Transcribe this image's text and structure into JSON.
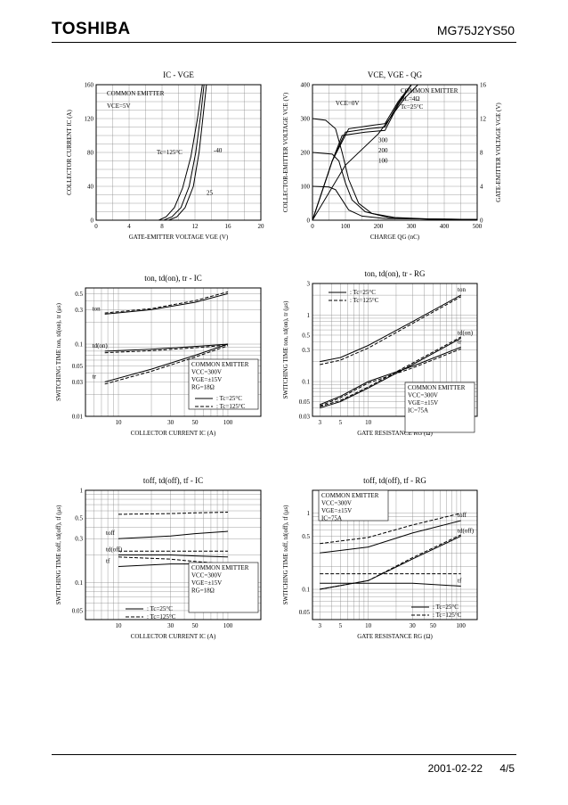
{
  "header": {
    "brand": "TOSHIBA",
    "part_number": "MG75J2YS50"
  },
  "footer": {
    "date": "2001-02-22",
    "page": "4/5"
  },
  "chart_data": [
    {
      "id": "ic_vge",
      "type": "line",
      "title": "IC - VGE",
      "xlabel": "GATE-EMITTER VOLTAGE  VGE  (V)",
      "ylabel": "COLLECTOR CURRENT  IC  (A)",
      "xlim": [
        0,
        20
      ],
      "ylim": [
        0,
        160
      ],
      "xticks": [
        0,
        4,
        8,
        12,
        16,
        20
      ],
      "yticks": [
        0,
        40,
        80,
        120,
        160
      ],
      "annotations": [
        "COMMON EMITTER",
        "VCE=5V",
        "Tc=125°C",
        "-40",
        "25"
      ],
      "series": [
        {
          "label": "125",
          "points": [
            [
              7.6,
              0
            ],
            [
              8.5,
              4
            ],
            [
              9.5,
              15
            ],
            [
              10.5,
              38
            ],
            [
              11.5,
              75
            ],
            [
              12.3,
              120
            ],
            [
              12.9,
              160
            ]
          ]
        },
        {
          "label": "25",
          "points": [
            [
              8.2,
              0
            ],
            [
              9.2,
              4
            ],
            [
              10.3,
              15
            ],
            [
              11.3,
              40
            ],
            [
              12.1,
              80
            ],
            [
              12.7,
              125
            ],
            [
              13.1,
              160
            ]
          ]
        },
        {
          "label": "-40",
          "points": [
            [
              8.8,
              0
            ],
            [
              9.8,
              4
            ],
            [
              10.8,
              15
            ],
            [
              11.8,
              40
            ],
            [
              12.5,
              80
            ],
            [
              13.0,
              125
            ],
            [
              13.4,
              160
            ]
          ]
        }
      ]
    },
    {
      "id": "vce_vge_qg",
      "type": "line",
      "title": "VCE, VGE - QG",
      "xlabel": "CHARGE  QG  (nC)",
      "ylabel": "COLLECTOR-EMITTER VOLTAGE  VCE  (V)",
      "ylabel2": "GATE-EMITTER VOLTAGE  VGE  (V)",
      "xlim": [
        0,
        500
      ],
      "ylim": [
        0,
        400
      ],
      "ylim2": [
        0,
        16
      ],
      "xticks": [
        0,
        100,
        200,
        300,
        400,
        500
      ],
      "yticks": [
        0,
        100,
        200,
        300,
        400
      ],
      "yticks2": [
        0,
        4,
        8,
        12,
        16
      ],
      "annotations": [
        "COMMON EMITTER",
        "RL=4Ω",
        "Tc=25°C",
        "VCE=0V",
        "300",
        "200",
        "100"
      ],
      "series": [
        {
          "label": "VCE 300",
          "points": [
            [
              0,
              300
            ],
            [
              40,
              295
            ],
            [
              70,
              270
            ],
            [
              90,
              200
            ],
            [
              110,
              120
            ],
            [
              140,
              50
            ],
            [
              180,
              20
            ],
            [
              250,
              8
            ],
            [
              350,
              4
            ],
            [
              500,
              2
            ]
          ]
        },
        {
          "label": "VCE 200",
          "points": [
            [
              0,
              200
            ],
            [
              60,
              195
            ],
            [
              80,
              175
            ],
            [
              100,
              110
            ],
            [
              120,
              60
            ],
            [
              160,
              25
            ],
            [
              230,
              8
            ],
            [
              350,
              3
            ],
            [
              500,
              2
            ]
          ]
        },
        {
          "label": "VCE 100",
          "points": [
            [
              0,
              100
            ],
            [
              50,
              98
            ],
            [
              70,
              90
            ],
            [
              90,
              60
            ],
            [
              110,
              30
            ],
            [
              150,
              12
            ],
            [
              220,
              5
            ],
            [
              500,
              2
            ]
          ]
        },
        {
          "label": "VGE 300",
          "points": [
            [
              0,
              0
            ],
            [
              60,
              7.0
            ],
            [
              110,
              10.8
            ],
            [
              180,
              11.2
            ],
            [
              220,
              11.4
            ],
            [
              260,
              14
            ],
            [
              300,
              16.4
            ]
          ]
        },
        {
          "label": "VGE 200",
          "points": [
            [
              0,
              0
            ],
            [
              60,
              7.0
            ],
            [
              100,
              10.4
            ],
            [
              170,
              10.8
            ],
            [
              220,
              11.0
            ],
            [
              260,
              13.8
            ],
            [
              300,
              16.4
            ]
          ]
        },
        {
          "label": "VGE 100",
          "points": [
            [
              0,
              0
            ],
            [
              60,
              7.0
            ],
            [
              90,
              10.0
            ],
            [
              160,
              10.4
            ],
            [
              220,
              10.6
            ],
            [
              260,
              13.6
            ],
            [
              300,
              16.4
            ]
          ]
        },
        {
          "label": "VGE 0V",
          "points": [
            [
              0,
              0
            ],
            [
              100,
              6.5
            ],
            [
              200,
              10.2
            ],
            [
              280,
              14.4
            ],
            [
              320,
              16.4
            ]
          ]
        }
      ]
    },
    {
      "id": "ton_ic",
      "type": "line",
      "title": "ton, td(on), tr - IC",
      "xlabel": "COLLECTOR CURRENT  IC  (A)",
      "ylabel": "SWITCHING TIME  ton, td(on), tr  (μs)",
      "xscale": "log",
      "yscale": "log",
      "xlim": [
        5,
        200
      ],
      "ylim": [
        0.01,
        0.6
      ],
      "xticks": [
        10,
        30,
        50,
        100
      ],
      "yticks": [
        0.01,
        0.03,
        0.05,
        0.1,
        0.3,
        0.5
      ],
      "annotations": [
        "COMMON EMITTER",
        "VCC=300V",
        "VGE=±15V",
        "RG=18Ω",
        "ton",
        "td(on)",
        "tr"
      ],
      "legend": [
        ": Tc=25°C",
        ": Tc=125°C"
      ],
      "series": [
        {
          "label": "ton 25",
          "style": "solid",
          "points": [
            [
              7.5,
              0.26
            ],
            [
              20,
              0.3
            ],
            [
              50,
              0.38
            ],
            [
              100,
              0.5
            ]
          ]
        },
        {
          "label": "ton 125",
          "style": "dashed",
          "points": [
            [
              7.5,
              0.27
            ],
            [
              20,
              0.31
            ],
            [
              50,
              0.4
            ],
            [
              100,
              0.53
            ]
          ]
        },
        {
          "label": "td(on) 25",
          "style": "solid",
          "points": [
            [
              7.5,
              0.08
            ],
            [
              20,
              0.085
            ],
            [
              50,
              0.093
            ],
            [
              100,
              0.1
            ]
          ]
        },
        {
          "label": "td(on) 125",
          "style": "dashed",
          "points": [
            [
              7.5,
              0.076
            ],
            [
              20,
              0.081
            ],
            [
              50,
              0.089
            ],
            [
              100,
              0.097
            ]
          ]
        },
        {
          "label": "tr 25",
          "style": "solid",
          "points": [
            [
              7.5,
              0.03
            ],
            [
              20,
              0.045
            ],
            [
              50,
              0.07
            ],
            [
              100,
              0.1
            ]
          ]
        },
        {
          "label": "tr 125",
          "style": "dashed",
          "points": [
            [
              7.5,
              0.028
            ],
            [
              20,
              0.042
            ],
            [
              50,
              0.066
            ],
            [
              100,
              0.095
            ]
          ]
        }
      ]
    },
    {
      "id": "ton_rg",
      "type": "line",
      "title": "ton, td(on), tr - RG",
      "xlabel": "GATE RESISTANCE  RG  (Ω)",
      "ylabel": "SWITCHING TIME  ton, td(on), tr  (μs)",
      "xscale": "log",
      "yscale": "log",
      "xlim": [
        2.5,
        150
      ],
      "ylim": [
        0.03,
        3
      ],
      "xticks": [
        3,
        5,
        10,
        30,
        50,
        100
      ],
      "yticks": [
        0.03,
        0.05,
        0.1,
        0.3,
        0.5,
        1,
        3
      ],
      "annotations": [
        "COMMON EMITTER",
        "VCC=300V",
        "VGE=±15V",
        "IC=75A",
        "ton",
        "td(on)",
        "tr"
      ],
      "legend": [
        ": Tc=25°C",
        ": Tc=125°C"
      ],
      "series": [
        {
          "label": "ton 25",
          "style": "solid",
          "points": [
            [
              3,
              0.2
            ],
            [
              5,
              0.23
            ],
            [
              10,
              0.35
            ],
            [
              30,
              0.8
            ],
            [
              100,
              2.0
            ]
          ]
        },
        {
          "label": "ton 125",
          "style": "dashed",
          "points": [
            [
              3,
              0.18
            ],
            [
              5,
              0.21
            ],
            [
              10,
              0.32
            ],
            [
              30,
              0.75
            ],
            [
              100,
              1.9
            ]
          ]
        },
        {
          "label": "td(on) 25",
          "style": "solid",
          "points": [
            [
              3,
              0.04
            ],
            [
              5,
              0.05
            ],
            [
              10,
              0.08
            ],
            [
              30,
              0.18
            ],
            [
              100,
              0.45
            ]
          ]
        },
        {
          "label": "td(on) 125",
          "style": "dashed",
          "points": [
            [
              3,
              0.042
            ],
            [
              5,
              0.052
            ],
            [
              10,
              0.083
            ],
            [
              30,
              0.19
            ],
            [
              100,
              0.47
            ]
          ]
        },
        {
          "label": "tr 25",
          "style": "solid",
          "points": [
            [
              3,
              0.045
            ],
            [
              5,
              0.06
            ],
            [
              10,
              0.1
            ],
            [
              30,
              0.17
            ],
            [
              100,
              0.33
            ]
          ]
        },
        {
          "label": "tr 125",
          "style": "dashed",
          "points": [
            [
              3,
              0.043
            ],
            [
              5,
              0.057
            ],
            [
              10,
              0.095
            ],
            [
              30,
              0.16
            ],
            [
              100,
              0.31
            ]
          ]
        }
      ]
    },
    {
      "id": "toff_ic",
      "type": "line",
      "title": "toff, td(off), tf - IC",
      "xlabel": "COLLECTOR CURRENT  IC  (A)",
      "ylabel": "SWITCHING TIME  toff, td(off), tf  (μs)",
      "xscale": "log",
      "yscale": "log",
      "xlim": [
        5,
        200
      ],
      "ylim": [
        0.04,
        1
      ],
      "xticks": [
        10,
        30,
        50,
        100
      ],
      "yticks": [
        0.05,
        0.1,
        0.3,
        0.5,
        1
      ],
      "annotations": [
        "COMMON EMITTER",
        "VCC=300V",
        "VGE=±15V",
        "RG=18Ω",
        "toff",
        "td(off)",
        "tf"
      ],
      "legend": [
        ": Tc=25°C",
        ": Tc=125°C"
      ],
      "series": [
        {
          "label": "toff 25",
          "style": "solid",
          "points": [
            [
              10,
              0.3
            ],
            [
              30,
              0.32
            ],
            [
              50,
              0.34
            ],
            [
              100,
              0.36
            ]
          ]
        },
        {
          "label": "toff 125",
          "style": "dashed",
          "points": [
            [
              10,
              0.55
            ],
            [
              30,
              0.56
            ],
            [
              50,
              0.57
            ],
            [
              100,
              0.58
            ]
          ]
        },
        {
          "label": "td(off) 25",
          "style": "solid",
          "points": [
            [
              10,
              0.2
            ],
            [
              30,
              0.2
            ],
            [
              50,
              0.195
            ],
            [
              100,
              0.19
            ]
          ]
        },
        {
          "label": "td(off) 125",
          "style": "dashed",
          "points": [
            [
              10,
              0.22
            ],
            [
              30,
              0.22
            ],
            [
              50,
              0.22
            ],
            [
              100,
              0.22
            ]
          ]
        },
        {
          "label": "tf 25",
          "style": "solid",
          "points": [
            [
              10,
              0.15
            ],
            [
              30,
              0.16
            ],
            [
              50,
              0.16
            ],
            [
              100,
              0.16
            ]
          ]
        },
        {
          "label": "tf 125",
          "style": "dashed",
          "points": [
            [
              10,
              0.19
            ],
            [
              30,
              0.18
            ],
            [
              50,
              0.17
            ],
            [
              100,
              0.16
            ]
          ]
        }
      ]
    },
    {
      "id": "toff_rg",
      "type": "line",
      "title": "toff, td(off), tf - RG",
      "xlabel": "GATE RESISTANCE  RG  (Ω)",
      "ylabel": "SWITCHING TIME  toff, td(off), tf  (μs)",
      "xscale": "log",
      "yscale": "log",
      "xlim": [
        2.5,
        150
      ],
      "ylim": [
        0.04,
        2
      ],
      "xticks": [
        3,
        5,
        10,
        30,
        50,
        100
      ],
      "yticks": [
        0.05,
        0.1,
        0.5,
        1
      ],
      "annotations": [
        "COMMON EMITTER",
        "VCC=300V",
        "VGE=±15V",
        "IC=75A",
        "toff",
        "td(off)",
        "tf"
      ],
      "legend": [
        ": Tc=25°C",
        ": Tc=125°C"
      ],
      "series": [
        {
          "label": "toff 25",
          "style": "solid",
          "points": [
            [
              3,
              0.3
            ],
            [
              10,
              0.36
            ],
            [
              30,
              0.55
            ],
            [
              100,
              0.8
            ]
          ]
        },
        {
          "label": "toff 125",
          "style": "dashed",
          "points": [
            [
              3,
              0.4
            ],
            [
              10,
              0.48
            ],
            [
              30,
              0.7
            ],
            [
              100,
              1.0
            ]
          ]
        },
        {
          "label": "td(off) 25",
          "style": "solid",
          "points": [
            [
              3,
              0.1
            ],
            [
              10,
              0.13
            ],
            [
              30,
              0.25
            ],
            [
              100,
              0.5
            ]
          ]
        },
        {
          "label": "td(off) 125",
          "style": "dashed",
          "points": [
            [
              3,
              0.1
            ],
            [
              10,
              0.13
            ],
            [
              30,
              0.26
            ],
            [
              100,
              0.52
            ]
          ]
        },
        {
          "label": "tf 25",
          "style": "solid",
          "points": [
            [
              3,
              0.12
            ],
            [
              10,
              0.12
            ],
            [
              30,
              0.12
            ],
            [
              100,
              0.11
            ]
          ]
        },
        {
          "label": "tf 125",
          "style": "dashed",
          "points": [
            [
              3,
              0.16
            ],
            [
              10,
              0.16
            ],
            [
              30,
              0.16
            ],
            [
              100,
              0.16
            ]
          ]
        }
      ]
    }
  ]
}
